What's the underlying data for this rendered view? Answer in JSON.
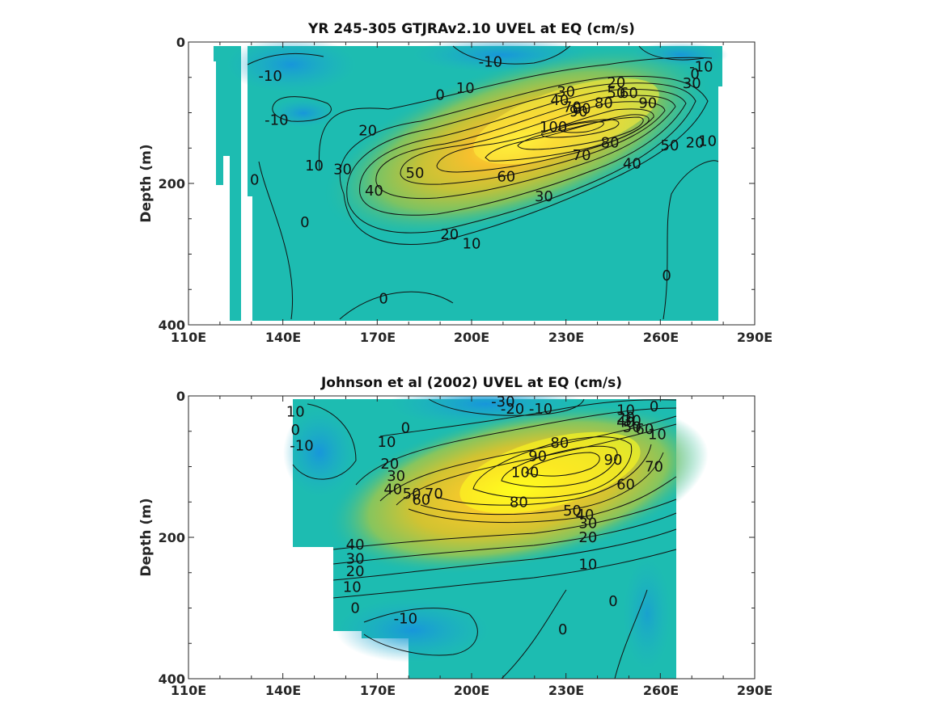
{
  "chart_data": [
    {
      "type": "contour",
      "title": "YR 245-305 GTJRAv2.10 UVEL at EQ (cm/s)",
      "xlabel": "",
      "ylabel": "Depth (m)",
      "xlim": [
        110,
        290
      ],
      "ylim": [
        400,
        0
      ],
      "x_tick_labels": [
        "110E",
        "140E",
        "170E",
        "200E",
        "230E",
        "260E",
        "290E"
      ],
      "y_tick_labels": [
        "0",
        "200",
        "400"
      ],
      "core": {
        "lon": 230,
        "depth": 115,
        "max_velocity": 100
      },
      "contour_levels": [
        -10,
        0,
        10,
        20,
        30,
        40,
        50,
        60,
        70,
        80,
        90,
        100
      ],
      "contour_labels": [
        {
          "text": "-10",
          "lon": 136,
          "depth": 48
        },
        {
          "text": "-10",
          "lon": 138,
          "depth": 110
        },
        {
          "text": "-10",
          "lon": 206,
          "depth": 28
        },
        {
          "text": "-10",
          "lon": 273,
          "depth": 35
        },
        {
          "text": "0",
          "lon": 271,
          "depth": 45
        },
        {
          "text": "0",
          "lon": 190,
          "depth": 75
        },
        {
          "text": "0",
          "lon": 131,
          "depth": 195
        },
        {
          "text": "0",
          "lon": 147,
          "depth": 255
        },
        {
          "text": "0",
          "lon": 172,
          "depth": 363
        },
        {
          "text": "0",
          "lon": 262,
          "depth": 330
        },
        {
          "text": "10",
          "lon": 198,
          "depth": 65
        },
        {
          "text": "10",
          "lon": 150,
          "depth": 175
        },
        {
          "text": "10",
          "lon": 200,
          "depth": 285
        },
        {
          "text": "10",
          "lon": 275,
          "depth": 140
        },
        {
          "text": "20",
          "lon": 167,
          "depth": 125
        },
        {
          "text": "20",
          "lon": 193,
          "depth": 272
        },
        {
          "text": "20",
          "lon": 246,
          "depth": 57
        },
        {
          "text": "20",
          "lon": 271,
          "depth": 142
        },
        {
          "text": "30",
          "lon": 230,
          "depth": 70
        },
        {
          "text": "30",
          "lon": 159,
          "depth": 180
        },
        {
          "text": "30",
          "lon": 223,
          "depth": 218
        },
        {
          "text": "30",
          "lon": 270,
          "depth": 58
        },
        {
          "text": "40",
          "lon": 228,
          "depth": 82
        },
        {
          "text": "40",
          "lon": 169,
          "depth": 210
        },
        {
          "text": "40",
          "lon": 251,
          "depth": 172
        },
        {
          "text": "50",
          "lon": 182,
          "depth": 185
        },
        {
          "text": "50",
          "lon": 246,
          "depth": 72
        },
        {
          "text": "50",
          "lon": 263,
          "depth": 146
        },
        {
          "text": "60",
          "lon": 211,
          "depth": 190
        },
        {
          "text": "60",
          "lon": 250,
          "depth": 72
        },
        {
          "text": "70",
          "lon": 232,
          "depth": 92
        },
        {
          "text": "70",
          "lon": 235,
          "depth": 160
        },
        {
          "text": "80",
          "lon": 235,
          "depth": 94
        },
        {
          "text": "80",
          "lon": 242,
          "depth": 86
        },
        {
          "text": "80",
          "lon": 244,
          "depth": 142
        },
        {
          "text": "90",
          "lon": 234,
          "depth": 98
        },
        {
          "text": "90",
          "lon": 256,
          "depth": 86
        },
        {
          "text": "100",
          "lon": 226,
          "depth": 120
        }
      ]
    },
    {
      "type": "contour",
      "title": "Johnson et al (2002) UVEL at EQ (cm/s)",
      "xlabel": "",
      "ylabel": "Depth (m)",
      "xlim": [
        110,
        290
      ],
      "ylim": [
        400,
        0
      ],
      "x_tick_labels": [
        "110E",
        "140E",
        "170E",
        "200E",
        "230E",
        "260E",
        "290E"
      ],
      "y_tick_labels": [
        "0",
        "200",
        "400"
      ],
      "core": {
        "lon": 220,
        "depth": 115,
        "max_velocity": 100
      },
      "contour_levels": [
        -30,
        -20,
        -10,
        0,
        10,
        20,
        30,
        40,
        50,
        60,
        70,
        80,
        90,
        100
      ],
      "contour_labels": [
        {
          "text": "-30",
          "lon": 210,
          "depth": 8
        },
        {
          "text": "-20",
          "lon": 213,
          "depth": 18
        },
        {
          "text": "-10",
          "lon": 222,
          "depth": 18
        },
        {
          "text": "10",
          "lon": 144,
          "depth": 22
        },
        {
          "text": "0",
          "lon": 144,
          "depth": 48
        },
        {
          "text": "-10",
          "lon": 146,
          "depth": 70
        },
        {
          "text": "0",
          "lon": 179,
          "depth": 45
        },
        {
          "text": "10",
          "lon": 173,
          "depth": 65
        },
        {
          "text": "20",
          "lon": 174,
          "depth": 96
        },
        {
          "text": "30",
          "lon": 176,
          "depth": 113
        },
        {
          "text": "40",
          "lon": 175,
          "depth": 132
        },
        {
          "text": "50",
          "lon": 181,
          "depth": 138
        },
        {
          "text": "60",
          "lon": 184,
          "depth": 147
        },
        {
          "text": "70",
          "lon": 188,
          "depth": 138
        },
        {
          "text": "10",
          "lon": 249,
          "depth": 20
        },
        {
          "text": "0",
          "lon": 258,
          "depth": 15
        },
        {
          "text": "20",
          "lon": 249,
          "depth": 30
        },
        {
          "text": "30",
          "lon": 251,
          "depth": 35
        },
        {
          "text": "40",
          "lon": 249,
          "depth": 37
        },
        {
          "text": "50",
          "lon": 251,
          "depth": 44
        },
        {
          "text": "60",
          "lon": 255,
          "depth": 47
        },
        {
          "text": "10",
          "lon": 259,
          "depth": 54
        },
        {
          "text": "100",
          "lon": 217,
          "depth": 108
        },
        {
          "text": "90",
          "lon": 221,
          "depth": 85
        },
        {
          "text": "80",
          "lon": 228,
          "depth": 66
        },
        {
          "text": "90",
          "lon": 245,
          "depth": 90
        },
        {
          "text": "80",
          "lon": 215,
          "depth": 150
        },
        {
          "text": "70",
          "lon": 258,
          "depth": 100
        },
        {
          "text": "60",
          "lon": 249,
          "depth": 125
        },
        {
          "text": "50",
          "lon": 232,
          "depth": 162
        },
        {
          "text": "40",
          "lon": 236,
          "depth": 168
        },
        {
          "text": "30",
          "lon": 237,
          "depth": 180
        },
        {
          "text": "20",
          "lon": 237,
          "depth": 200
        },
        {
          "text": "10",
          "lon": 237,
          "depth": 238
        },
        {
          "text": "40",
          "lon": 163,
          "depth": 210
        },
        {
          "text": "30",
          "lon": 163,
          "depth": 230
        },
        {
          "text": "20",
          "lon": 163,
          "depth": 248
        },
        {
          "text": "10",
          "lon": 162,
          "depth": 270
        },
        {
          "text": "0",
          "lon": 163,
          "depth": 300
        },
        {
          "text": "-10",
          "lon": 179,
          "depth": 315
        },
        {
          "text": "0",
          "lon": 229,
          "depth": 330
        },
        {
          "text": "0",
          "lon": 245,
          "depth": 290
        }
      ]
    }
  ]
}
